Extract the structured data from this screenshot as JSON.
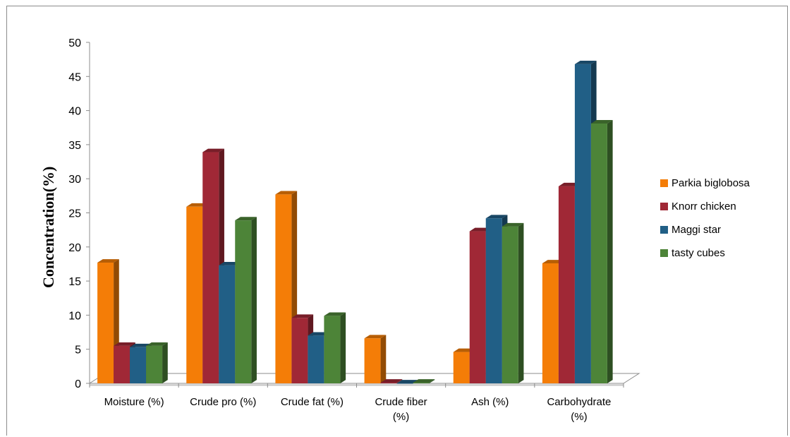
{
  "chart_data": {
    "type": "bar",
    "ylabel": "Concentration(%)",
    "ylim": [
      0,
      50
    ],
    "yticks": [
      "0",
      "5",
      "10",
      "15",
      "20",
      "25",
      "30",
      "35",
      "40",
      "45",
      "50"
    ],
    "categories": [
      [
        "Moisture (%)"
      ],
      [
        "Crude pro (%)"
      ],
      [
        "Crude fat (%)"
      ],
      [
        "Crude fiber",
        "(%)"
      ],
      [
        "Ash (%)"
      ],
      [
        "Carbohydrate",
        "(%)"
      ]
    ],
    "series": [
      {
        "name": "Parkia biglobosa",
        "color": "#f47d07",
        "values": [
          17.7,
          25.9,
          27.7,
          6.6,
          4.6,
          17.6
        ]
      },
      {
        "name": "Knorr chicken",
        "color": "#a02836",
        "values": [
          5.5,
          33.9,
          9.6,
          0.1,
          22.3,
          28.9
        ]
      },
      {
        "name": "Maggi star",
        "color": "#215f86",
        "values": [
          5.3,
          17.3,
          7.0,
          0.0,
          24.2,
          46.8
        ]
      },
      {
        "name": "tasty cubes",
        "color": "#4d8438",
        "values": [
          5.5,
          23.9,
          9.9,
          0.1,
          23.0,
          38.1
        ]
      }
    ],
    "legend_position": "right",
    "grid": false,
    "style": "3d-clustered-bar"
  }
}
